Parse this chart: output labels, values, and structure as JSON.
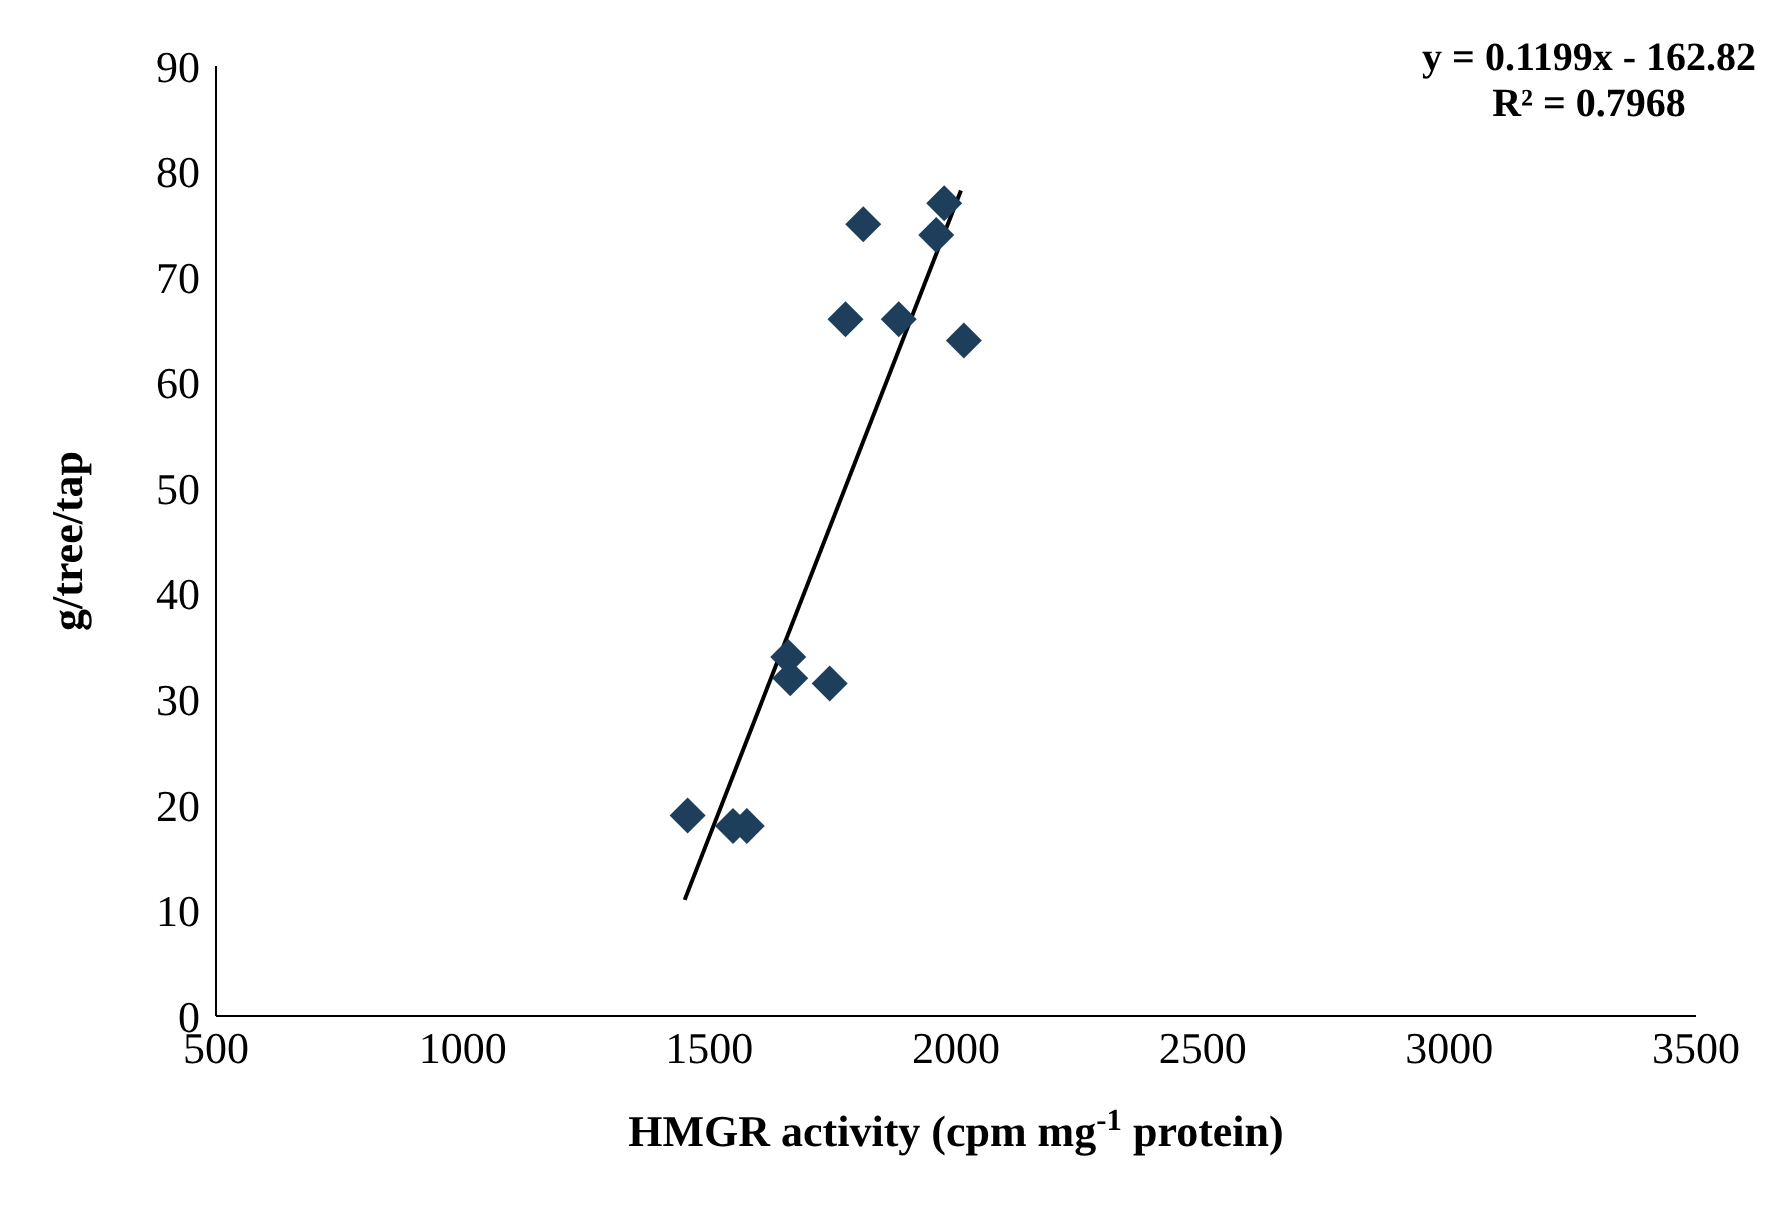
{
  "chart_data": {
    "type": "scatter",
    "xlabel": "HMGR activity (cpm mg$^{-1}$ protein)",
    "ylabel": "g/tree/tap",
    "xlim": [
      500,
      3500
    ],
    "xticks": [
      500,
      1000,
      1500,
      2000,
      2500,
      3000,
      3500
    ],
    "ylim": [
      0,
      90
    ],
    "yticks": [
      0,
      10,
      20,
      30,
      40,
      50,
      60,
      70,
      80,
      90
    ],
    "marker": "diamond",
    "annotations": [
      "y = 0.1199x - 162.82",
      "R² = 0.7968"
    ],
    "series": [
      {
        "color": "#1e3f5c",
        "x": [
          1812,
          1976,
          1960,
          1776,
          1884,
          2016,
          1660,
          1664,
          1744,
          1456,
          1548,
          1576
        ],
        "values": [
          75,
          77,
          74,
          66,
          66,
          64,
          34,
          32,
          31.5,
          19,
          18,
          18
        ]
      },
      {
        "type": "line",
        "color": "#000000",
        "marker": "none",
        "x": [
          1450,
          2010
        ],
        "values": [
          11.0,
          78.2
        ]
      }
    ]
  }
}
